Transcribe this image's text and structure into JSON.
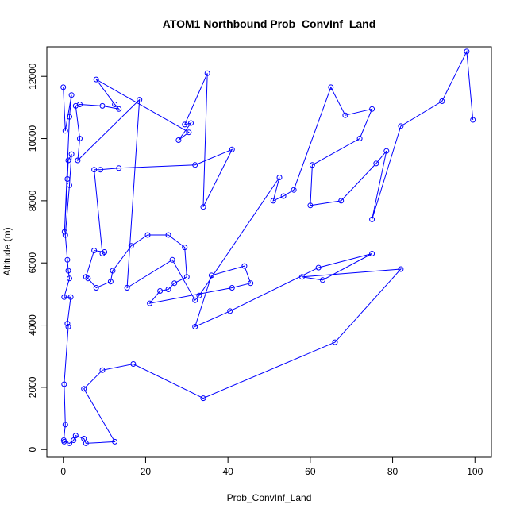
{
  "chart_data": {
    "type": "line",
    "title": "ATOM1 Northbound Prob_ConvInf_Land",
    "xlabel": "Prob_ConvInf_Land",
    "ylabel": "Altitude (m)",
    "xlim": [
      -4,
      104
    ],
    "ylim": [
      -250,
      12950
    ],
    "xticks": [
      0,
      20,
      40,
      60,
      80,
      100
    ],
    "yticks": [
      0,
      2000,
      4000,
      6000,
      8000,
      10000,
      12000
    ],
    "grid": false,
    "line_color": "#0000FF",
    "series": [
      {
        "marker": "open-circle",
        "points": [
          [
            0,
            11650
          ],
          [
            0.5,
            10250
          ],
          [
            2,
            11400
          ],
          [
            1.5,
            10700
          ],
          [
            0.3,
            7000
          ],
          [
            1,
            8700
          ],
          [
            1.2,
            9300
          ],
          [
            2,
            9500
          ],
          [
            1.5,
            8500
          ],
          [
            0.5,
            6900
          ],
          [
            1,
            6100
          ],
          [
            1.2,
            5750
          ],
          [
            1.5,
            5500
          ],
          [
            0.2,
            4900
          ],
          [
            1.8,
            4900
          ],
          [
            1,
            4050
          ],
          [
            1.2,
            3950
          ],
          [
            0.2,
            2100
          ],
          [
            0.5,
            800
          ],
          [
            0.1,
            300
          ],
          [
            0.2,
            250
          ],
          [
            1.5,
            200
          ],
          [
            2.5,
            300
          ],
          [
            3,
            450
          ],
          [
            5,
            350
          ],
          [
            5.5,
            200
          ],
          [
            12.5,
            250
          ],
          [
            5,
            1950
          ],
          [
            9.5,
            2550
          ],
          [
            17,
            2750
          ],
          [
            34,
            1650
          ],
          [
            66,
            3450
          ],
          [
            82,
            5800
          ],
          [
            58,
            5550
          ],
          [
            63,
            5450
          ],
          [
            75,
            6300
          ],
          [
            62,
            5850
          ],
          [
            40.5,
            4450
          ],
          [
            32,
            3950
          ],
          [
            36,
            5600
          ],
          [
            44,
            5900
          ],
          [
            45.5,
            5350
          ],
          [
            41,
            5200
          ],
          [
            21,
            4700
          ],
          [
            23.5,
            5100
          ],
          [
            25.5,
            5150
          ],
          [
            27,
            5350
          ],
          [
            30,
            5550
          ],
          [
            29.5,
            6500
          ],
          [
            25.5,
            6900
          ],
          [
            20.5,
            6900
          ],
          [
            16.5,
            6550
          ],
          [
            12,
            5750
          ],
          [
            11.5,
            5400
          ],
          [
            8,
            5200
          ],
          [
            6,
            5500
          ],
          [
            5.5,
            5550
          ],
          [
            7.5,
            6400
          ],
          [
            10,
            6350
          ],
          [
            9.5,
            6300
          ],
          [
            7.5,
            9000
          ],
          [
            9,
            9000
          ],
          [
            13.5,
            9050
          ],
          [
            32,
            9150
          ],
          [
            41,
            9650
          ],
          [
            34,
            7800
          ],
          [
            35,
            12100
          ],
          [
            29.5,
            10450
          ],
          [
            31,
            10500
          ],
          [
            28,
            9950
          ],
          [
            30.5,
            10200
          ],
          [
            8,
            11900
          ],
          [
            12.5,
            11100
          ],
          [
            13.5,
            10950
          ],
          [
            9.5,
            11050
          ],
          [
            4,
            11100
          ],
          [
            3,
            11050
          ],
          [
            4,
            10000
          ],
          [
            3.5,
            9300
          ],
          [
            18.5,
            11250
          ],
          [
            15.5,
            5200
          ],
          [
            26.5,
            6100
          ],
          [
            32,
            4800
          ],
          [
            33,
            4950
          ],
          [
            52.5,
            8750
          ],
          [
            51,
            8000
          ],
          [
            53.5,
            8150
          ],
          [
            56,
            8350
          ],
          [
            65,
            11650
          ],
          [
            68.5,
            10750
          ],
          [
            75,
            10950
          ],
          [
            72,
            10000
          ],
          [
            60.5,
            9150
          ],
          [
            60,
            7850
          ],
          [
            67.5,
            8000
          ],
          [
            76,
            9200
          ],
          [
            78.5,
            9600
          ],
          [
            75,
            7400
          ],
          [
            82,
            10400
          ],
          [
            92,
            11200
          ],
          [
            98,
            12800
          ],
          [
            99.5,
            10600
          ]
        ]
      }
    ]
  }
}
